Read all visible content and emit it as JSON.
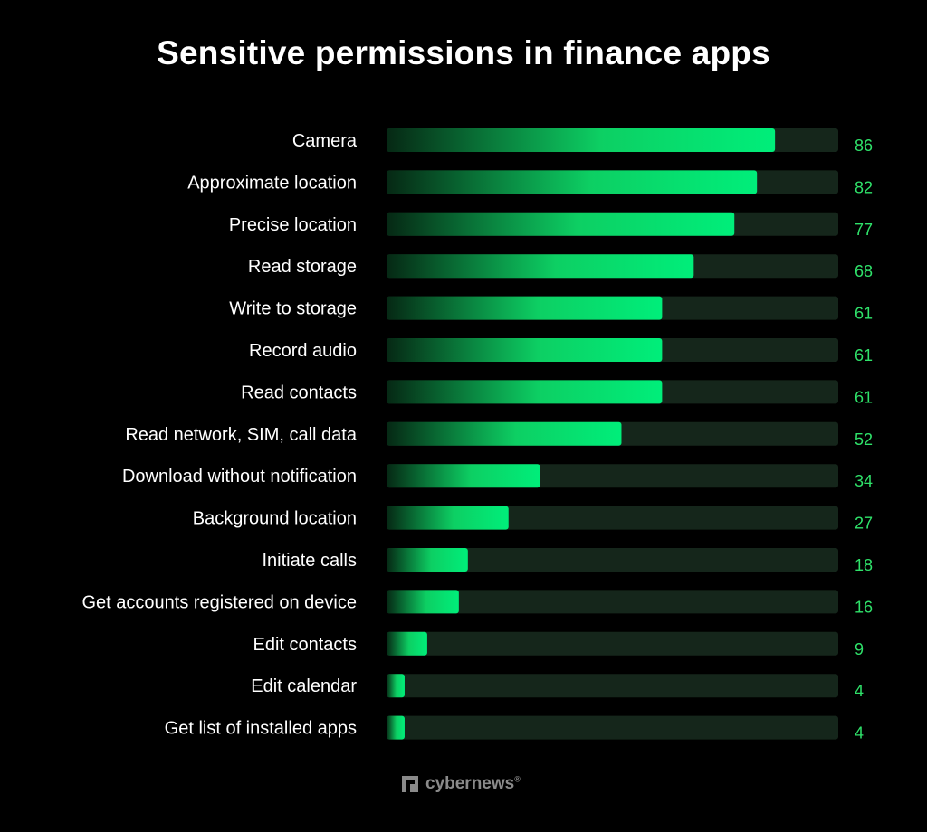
{
  "title": "Sensitive permissions in finance apps",
  "brand": {
    "name": "cybernews",
    "registered_mark": "®",
    "icon": "cybernews-logo-icon"
  },
  "colors": {
    "background": "#000000",
    "bar_fill": "#00e676",
    "bar_fill_dark": "#062814",
    "bar_track": "#15261b",
    "value_text": "#2fe26a",
    "label_text": "#ffffff"
  },
  "chart_data": {
    "type": "bar",
    "orientation": "horizontal",
    "title": "Sensitive permissions in finance apps",
    "categories": [
      "Camera",
      "Approximate location",
      "Precise location",
      "Read storage",
      "Write to storage",
      "Record audio",
      "Read contacts",
      "Read network, SIM, call data",
      "Download without notification",
      "Background location",
      "Initiate calls",
      "Get accounts registered on device",
      "Edit contacts",
      "Edit calendar",
      "Get list of installed apps"
    ],
    "values": [
      86,
      82,
      77,
      68,
      61,
      61,
      61,
      52,
      34,
      27,
      18,
      16,
      9,
      4,
      4
    ],
    "xlim": [
      0,
      100
    ],
    "grid": false,
    "legend": "none",
    "data_labels": "right"
  }
}
